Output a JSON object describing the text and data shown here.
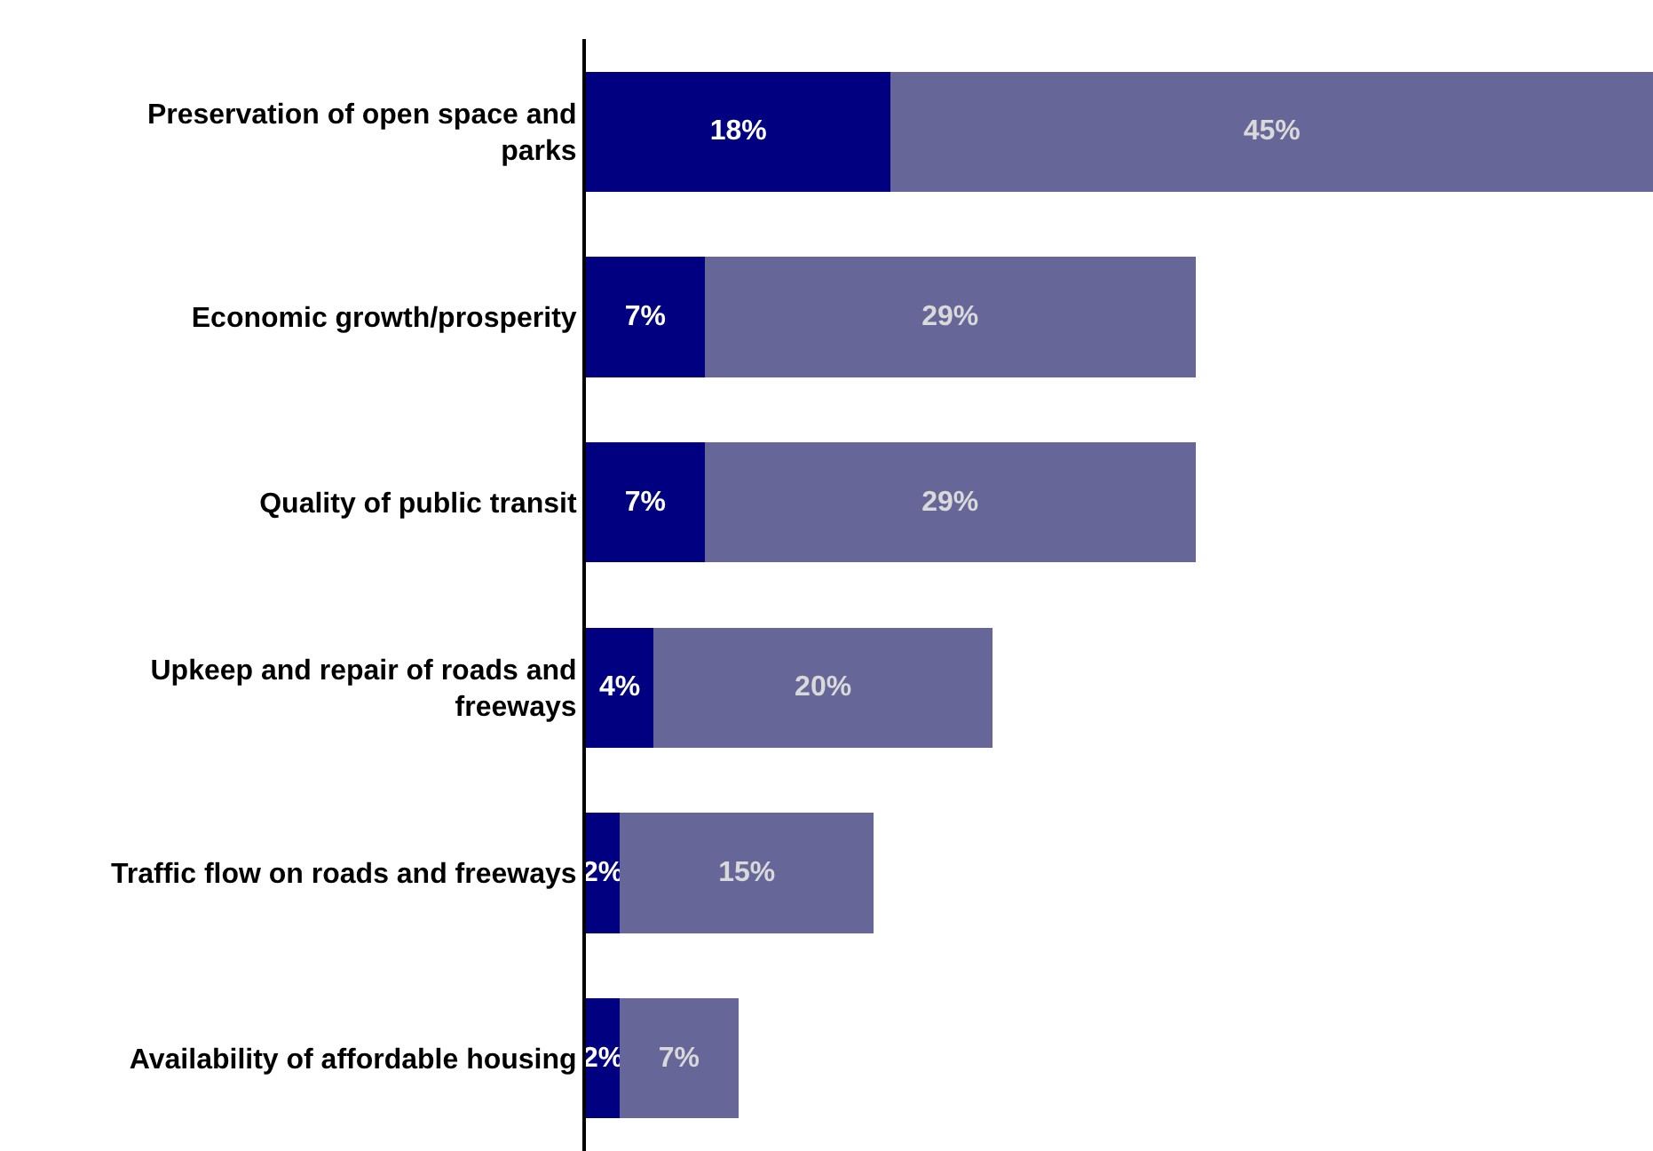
{
  "chart_data": {
    "type": "bar",
    "orientation": "horizontal",
    "stacked": true,
    "tick_labels": "y",
    "categories": [
      "Preservation of open space and parks",
      "Economic growth/prosperity",
      "Quality of public transit",
      "Upkeep and repair of roads and freeways",
      "Traffic flow on roads and freeways",
      "Availability of affordable housing"
    ],
    "series": [
      {
        "color": "#000080",
        "values": [
          18,
          7,
          7,
          4,
          2,
          2
        ],
        "value_labels": [
          "18%",
          "7%",
          "7%",
          "4%",
          "2%",
          "2%"
        ]
      },
      {
        "color": "#666699",
        "values": [
          45,
          29,
          29,
          20,
          15,
          7
        ],
        "value_labels": [
          "45%",
          "29%",
          "29%",
          "20%",
          "15%",
          "7%"
        ]
      }
    ]
  }
}
